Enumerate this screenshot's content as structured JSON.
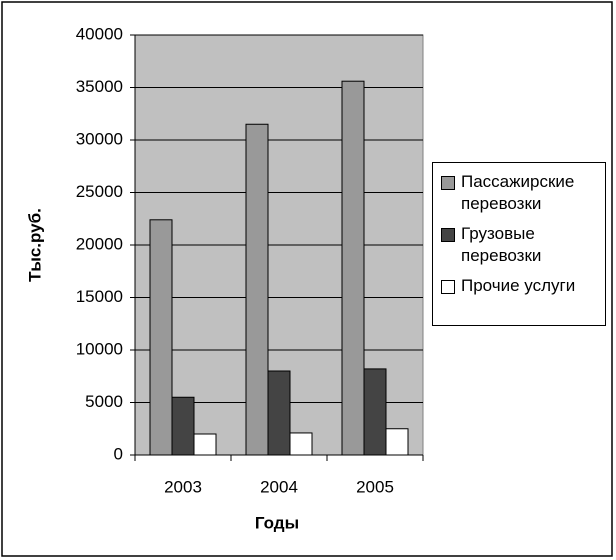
{
  "chart_data": {
    "type": "bar",
    "x_label": "Годы",
    "y_label": "Тыс.руб.",
    "categories": [
      "2003",
      "2004",
      "2005"
    ],
    "series": [
      {
        "name": "Пассажирские перевозки",
        "color": "#999999",
        "values": [
          22400,
          31500,
          35600
        ]
      },
      {
        "name": "Грузовые перевозки",
        "color": "#444444",
        "values": [
          5500,
          8000,
          8200
        ]
      },
      {
        "name": "Прочие услуги",
        "color": "#ffffff",
        "values": [
          2000,
          2100,
          2500
        ]
      }
    ],
    "ylim": [
      0,
      40000
    ],
    "yticks": [
      0,
      5000,
      10000,
      15000,
      20000,
      25000,
      30000,
      35000,
      40000
    ],
    "grid": true,
    "legend": "right"
  }
}
